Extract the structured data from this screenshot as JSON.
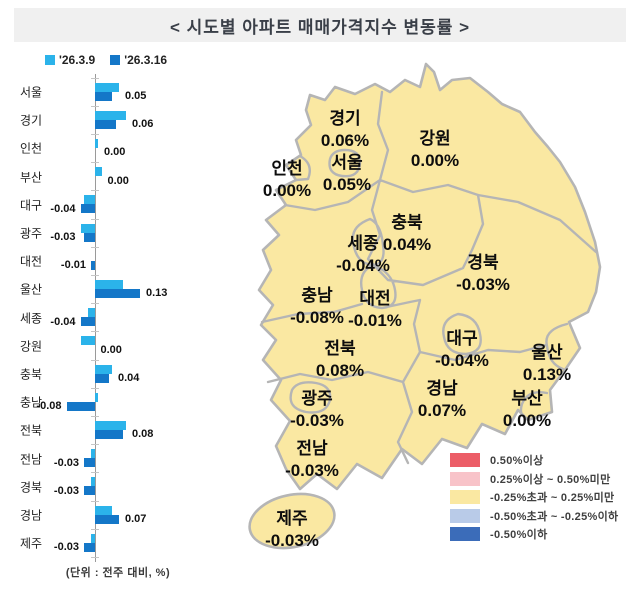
{
  "title": "< 시도별 아파트 매매가격지수 변동률 >",
  "unit_note": "(단위 : 전주 대비, %)",
  "chart_data": {
    "type": "bar",
    "orientation": "horizontal",
    "title": "시도별 아파트 매매가격지수 변동률",
    "categories": [
      "서울",
      "경기",
      "인천",
      "부산",
      "대구",
      "광주",
      "대전",
      "울산",
      "세종",
      "강원",
      "충북",
      "충남",
      "전북",
      "전남",
      "경북",
      "경남",
      "제주"
    ],
    "series": [
      {
        "name": "'26.3.9",
        "color": "#2bb3ea",
        "values": [
          0.07,
          0.09,
          0.01,
          0.02,
          -0.03,
          -0.04,
          0,
          0.08,
          -0.02,
          -0.04,
          0.05,
          0.01,
          0.09,
          -0.01,
          -0.01,
          0.05,
          -0.01
        ]
      },
      {
        "name": "'26.3.16",
        "color": "#1477c8",
        "values": [
          0.05,
          0.06,
          0,
          0,
          -0.04,
          -0.03,
          -0.01,
          0.13,
          -0.04,
          0,
          0.04,
          -0.08,
          0.08,
          -0.03,
          -0.03,
          0.07,
          -0.03
        ]
      }
    ],
    "value_labels": [
      "0.05",
      "0.06",
      "0.00",
      "0.00",
      "-0.04",
      "-0.03",
      "-0.01",
      "0.13",
      "-0.04",
      "0.00",
      "0.04",
      "-0.08",
      "0.08",
      "-0.03",
      "-0.03",
      "0.07",
      "-0.03"
    ],
    "xlim": [
      -0.1,
      0.15
    ],
    "unit": "전주 대비, %"
  },
  "map": {
    "fill_color": "#fae8a2",
    "border_color": "#b5b5b5",
    "regions": [
      {
        "name": "경기",
        "value": "0.06%"
      },
      {
        "name": "강원",
        "value": "0.00%"
      },
      {
        "name": "인천",
        "value": "0.00%"
      },
      {
        "name": "서울",
        "value": "0.05%"
      },
      {
        "name": "충북",
        "value": "0.04%"
      },
      {
        "name": "세종",
        "value": "-0.04%"
      },
      {
        "name": "경북",
        "value": "-0.03%"
      },
      {
        "name": "충남",
        "value": "-0.08%"
      },
      {
        "name": "대전",
        "value": "-0.01%"
      },
      {
        "name": "대구",
        "value": "-0.04%"
      },
      {
        "name": "전북",
        "value": "0.08%"
      },
      {
        "name": "울산",
        "value": "0.13%"
      },
      {
        "name": "경남",
        "value": "0.07%"
      },
      {
        "name": "광주",
        "value": "-0.03%"
      },
      {
        "name": "부산",
        "value": "0.00%"
      },
      {
        "name": "전남",
        "value": "-0.03%"
      },
      {
        "name": "제주",
        "value": "-0.03%"
      }
    ],
    "legend": [
      {
        "color": "#ec5d67",
        "label": "0.50%이상"
      },
      {
        "color": "#f8c3c9",
        "label": "0.25%이상 ~ 0.50%미만"
      },
      {
        "color": "#fae8a2",
        "label": "-0.25%초과 ~ 0.25%미만"
      },
      {
        "color": "#b9cbe8",
        "label": "-0.50%초과 ~ -0.25%이하"
      },
      {
        "color": "#3b6cb9",
        "label": "-0.50%이하"
      }
    ]
  }
}
